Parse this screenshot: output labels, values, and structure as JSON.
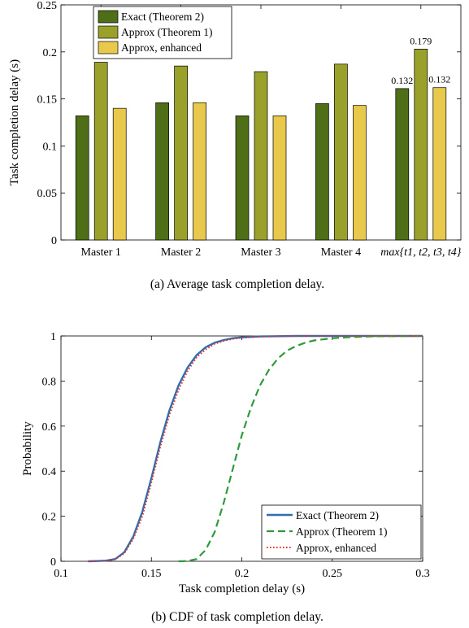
{
  "chart_data": [
    {
      "type": "bar",
      "categories": [
        "Master 1",
        "Master 2",
        "Master 3",
        "Master 4",
        "max{t1, t2, t3, t4}"
      ],
      "series": [
        {
          "name": "Exact (Theorem 2)",
          "values": [
            0.132,
            0.146,
            0.132,
            0.145,
            0.161
          ],
          "color": "#4f6e18"
        },
        {
          "name": "Approx (Theorem 1)",
          "values": [
            0.189,
            0.185,
            0.179,
            0.187,
            0.203
          ],
          "color": "#9aa12a"
        },
        {
          "name": "Approx, enhanced",
          "values": [
            0.14,
            0.146,
            0.132,
            0.143,
            0.162
          ],
          "color": "#e8c94c"
        }
      ],
      "data_labels": [
        "0.132",
        "0.179",
        "0.132"
      ],
      "xlabel": "",
      "ylabel": "Task completion delay (s)",
      "ylim": [
        0,
        0.25
      ],
      "yticks": [
        "0",
        "0.05",
        "0.1",
        "0.15",
        "0.2",
        "0.25"
      ],
      "legend_position": "top-left",
      "caption": "(a)  Average task completion delay."
    },
    {
      "type": "line",
      "series": [
        {
          "name": "Exact (Theorem 2)",
          "color": "#2f6fb0",
          "style": "solid",
          "x": [
            0.115,
            0.12,
            0.125,
            0.13,
            0.135,
            0.14,
            0.145,
            0.15,
            0.155,
            0.16,
            0.165,
            0.17,
            0.175,
            0.18,
            0.185,
            0.19,
            0.195,
            0.2,
            0.21,
            0.22,
            0.23,
            0.24,
            0.25,
            0.3
          ],
          "y": [
            0,
            0.001,
            0.003,
            0.01,
            0.04,
            0.11,
            0.22,
            0.37,
            0.53,
            0.67,
            0.78,
            0.86,
            0.915,
            0.95,
            0.97,
            0.982,
            0.99,
            0.994,
            0.998,
            0.999,
            1,
            1,
            1,
            1
          ]
        },
        {
          "name": "Approx (Theorem 1)",
          "color": "#2e9a3a",
          "style": "dashed",
          "x": [
            0.165,
            0.17,
            0.175,
            0.18,
            0.185,
            0.19,
            0.195,
            0.2,
            0.205,
            0.21,
            0.215,
            0.22,
            0.225,
            0.23,
            0.235,
            0.24,
            0.25,
            0.26,
            0.27,
            0.28,
            0.3
          ],
          "y": [
            0,
            0.001,
            0.01,
            0.05,
            0.13,
            0.26,
            0.41,
            0.56,
            0.68,
            0.78,
            0.85,
            0.9,
            0.935,
            0.955,
            0.97,
            0.98,
            0.99,
            0.995,
            0.998,
            0.999,
            1
          ]
        },
        {
          "name": "Approx, enhanced",
          "color": "#e03030",
          "style": "dotted",
          "x": [
            0.115,
            0.12,
            0.125,
            0.13,
            0.135,
            0.14,
            0.145,
            0.15,
            0.155,
            0.16,
            0.165,
            0.17,
            0.175,
            0.18,
            0.185,
            0.19,
            0.195,
            0.2,
            0.21,
            0.22,
            0.23,
            0.24,
            0.25,
            0.3
          ],
          "y": [
            0,
            0.001,
            0.003,
            0.009,
            0.035,
            0.1,
            0.2,
            0.35,
            0.51,
            0.65,
            0.76,
            0.845,
            0.905,
            0.94,
            0.965,
            0.978,
            0.987,
            0.992,
            0.997,
            0.999,
            1,
            1,
            1,
            1
          ]
        }
      ],
      "xlabel": "Task completion delay (s)",
      "ylabel": "Probability",
      "xlim": [
        0.1,
        0.3
      ],
      "ylim": [
        0,
        1
      ],
      "xticks": [
        "0.1",
        "0.15",
        "0.2",
        "0.25",
        "0.3"
      ],
      "yticks": [
        "0",
        "0.2",
        "0.4",
        "0.6",
        "0.8",
        "1"
      ],
      "legend_position": "bottom-right",
      "caption": "(b)  CDF of task completion delay."
    }
  ]
}
